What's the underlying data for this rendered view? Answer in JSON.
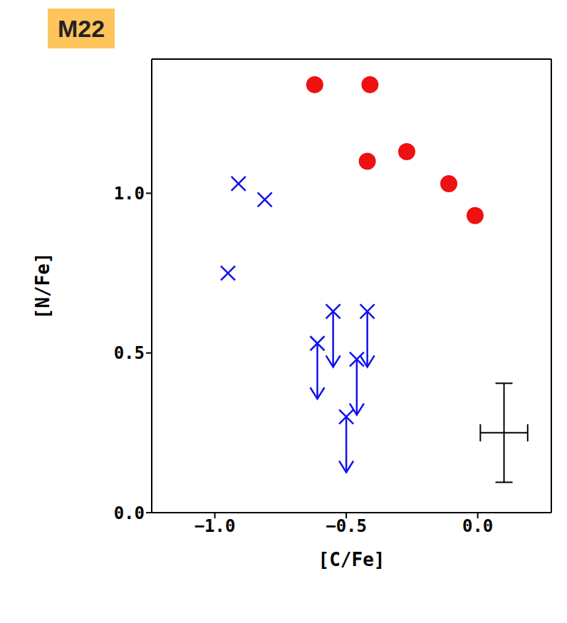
{
  "chart_data": {
    "type": "scatter",
    "title": "M22",
    "x_label": "[C/Fe]",
    "y_label": "[N/Fe]",
    "xlim": [
      -1.24,
      0.28
    ],
    "ylim": [
      0,
      1.42
    ],
    "xticks": [
      {
        "value": -1.0,
        "label": "−1.0"
      },
      {
        "value": -0.5,
        "label": "−0.5"
      },
      {
        "value": 0.0,
        "label": "0.0"
      }
    ],
    "yticks": [
      {
        "value": 0,
        "label": "0.0"
      },
      0.5,
      {
        "value": 1.0,
        "label": "1.0"
      }
    ],
    "grid": false,
    "series": [
      {
        "color": "#ee1111",
        "marker": "circle",
        "x": [
          -0.62,
          -0.41,
          -0.42,
          -0.27,
          -0.11,
          -0.01
        ],
        "values": [
          1.34,
          1.34,
          1.1,
          1.13,
          1.03,
          0.93
        ]
      },
      {
        "color": "#1111ee",
        "marker": "cross",
        "x": [
          -0.95,
          -0.91,
          -0.81,
          -0.61,
          -0.55,
          -0.42,
          -0.46,
          -0.5
        ],
        "values": [
          0.75,
          1.03,
          0.98,
          0.53,
          0.63,
          0.63,
          0.48,
          0.3
        ],
        "upper_limit": [
          false,
          false,
          false,
          true,
          true,
          true,
          true,
          true
        ]
      }
    ],
    "error_bar": {
      "x": 0.1,
      "y": 0.25,
      "xerr": 0.09,
      "yerr": 0.155
    }
  }
}
